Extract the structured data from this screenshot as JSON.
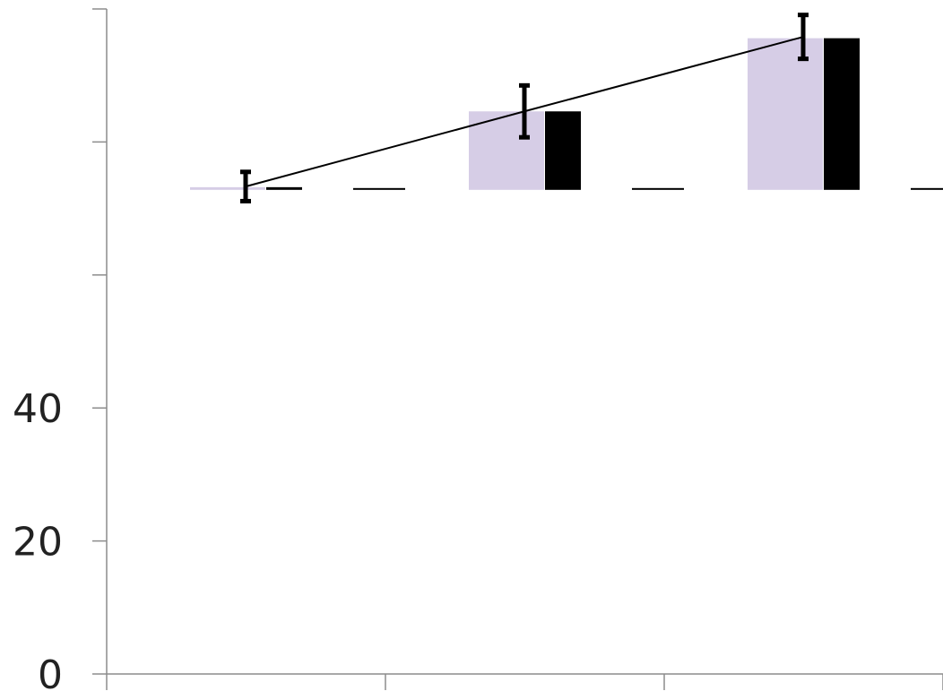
{
  "chart_data": {
    "type": "bar",
    "categories": [
      "",
      "",
      ""
    ],
    "y_tick_labels": [
      "0",
      "20",
      "40",
      "",
      "",
      ""
    ],
    "y_ticks": [
      0,
      20,
      40,
      60,
      80,
      100
    ],
    "ylim": [
      0,
      100
    ],
    "series": [
      {
        "values": [
          73.2,
          84.6,
          95.6
        ],
        "color": "#d6cde6"
      },
      {
        "values": [
          73.2,
          84.6,
          95.6
        ],
        "color": "#000000"
      },
      {
        "values": [
          72.8,
          72.8,
          72.8
        ],
        "color": "#000000"
      }
    ],
    "line": {
      "values": [
        73.3,
        84.6,
        95.8
      ],
      "errors": [
        2.2,
        3.9,
        3.3
      ],
      "color": "#000000"
    },
    "grid": false,
    "legend": "none"
  }
}
